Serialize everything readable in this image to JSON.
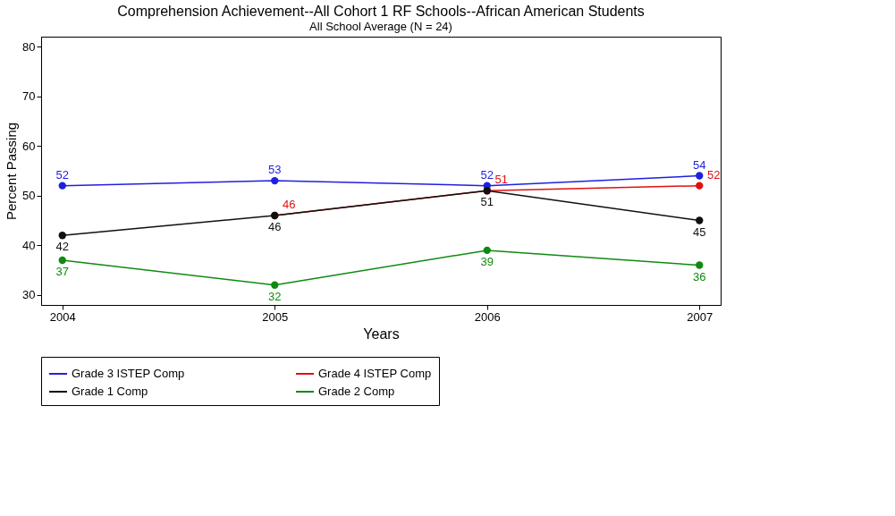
{
  "chart_data": {
    "type": "line",
    "title": "Comprehension Achievement--All Cohort 1 RF Schools--African American Students",
    "xlabel": "Years",
    "ylabel": "Percent Passing",
    "x": [
      2004,
      2005,
      2006,
      2007
    ],
    "series": [
      {
        "name": "Grade 3 ISTEP Comp",
        "color": "#1f1fe0",
        "values": [
          52,
          53,
          52,
          54
        ]
      },
      {
        "name": "Grade 4 ISTEP Comp",
        "color": "#e01010",
        "values": [
          null,
          46,
          51,
          52
        ]
      },
      {
        "name": "Grade 1 Comp",
        "color": "#101010",
        "values": [
          42,
          46,
          51,
          45
        ]
      },
      {
        "name": "Grade 2 Comp",
        "color": "#108a10",
        "values": [
          37,
          32,
          39,
          36
        ]
      }
    ],
    "xlim": [
      2003.9,
      2007.1
    ],
    "xticks": [
      2004,
      2005,
      2006,
      2007
    ],
    "ylim": [
      28,
      82
    ],
    "yticks": [
      30,
      40,
      50,
      60,
      70,
      80
    ],
    "data_labels": true,
    "grid": false,
    "legend": "bottom",
    "marker": "circle",
    "line_style": "solid",
    "annotations": [
      "All School Average (N = 24)"
    ]
  }
}
